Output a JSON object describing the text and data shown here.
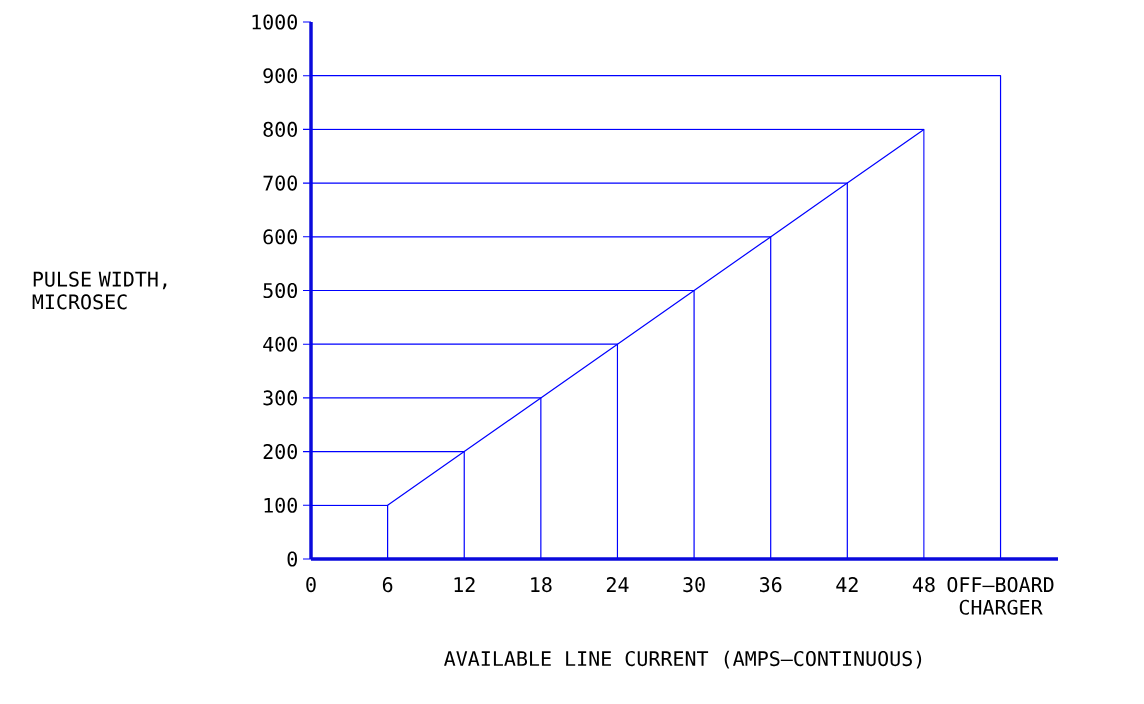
{
  "chart_data": {
    "type": "line",
    "xlabel": "AVAILABLE LINE CURRENT  (AMPS—CONTINUOUS)",
    "ylabel": "PULSE WIDTH, MICROSEC",
    "xlim": [
      0,
      58.5
    ],
    "ylim": [
      0,
      1000
    ],
    "xticks": [
      0,
      6,
      12,
      18,
      24,
      30,
      36,
      42,
      48,
      {
        "value": 54,
        "label": "OFF—BOARD CHARGER"
      }
    ],
    "yticks": [
      0,
      100,
      200,
      300,
      400,
      500,
      600,
      700,
      800,
      900,
      1000
    ],
    "marker": "none",
    "line_style": "solid",
    "series": [
      {
        "color": "#0000ff",
        "x": [
          6,
          12,
          18,
          24,
          30,
          36,
          42,
          48
        ],
        "values": [
          100,
          200,
          300,
          400,
          500,
          600,
          700,
          800
        ]
      },
      {
        "color": "#0000ff",
        "x": [
          0,
          6,
          6
        ],
        "values": [
          100,
          100,
          0
        ]
      },
      {
        "color": "#0000ff",
        "x": [
          0,
          12,
          12
        ],
        "values": [
          200,
          200,
          0
        ]
      },
      {
        "color": "#0000ff",
        "x": [
          0,
          18,
          18
        ],
        "values": [
          300,
          300,
          0
        ]
      },
      {
        "color": "#0000ff",
        "x": [
          0,
          24,
          24
        ],
        "values": [
          400,
          400,
          0
        ]
      },
      {
        "color": "#0000ff",
        "x": [
          0,
          30,
          30
        ],
        "values": [
          500,
          500,
          0
        ]
      },
      {
        "color": "#0000ff",
        "x": [
          0,
          36,
          36
        ],
        "values": [
          600,
          600,
          0
        ]
      },
      {
        "color": "#0000ff",
        "x": [
          0,
          42,
          42
        ],
        "values": [
          700,
          700,
          0
        ]
      },
      {
        "color": "#0000ff",
        "x": [
          0,
          48,
          48
        ],
        "values": [
          800,
          800,
          0
        ]
      },
      {
        "color": "#0000ff",
        "x": [
          0,
          54,
          54
        ],
        "values": [
          900,
          900,
          0
        ]
      }
    ]
  }
}
